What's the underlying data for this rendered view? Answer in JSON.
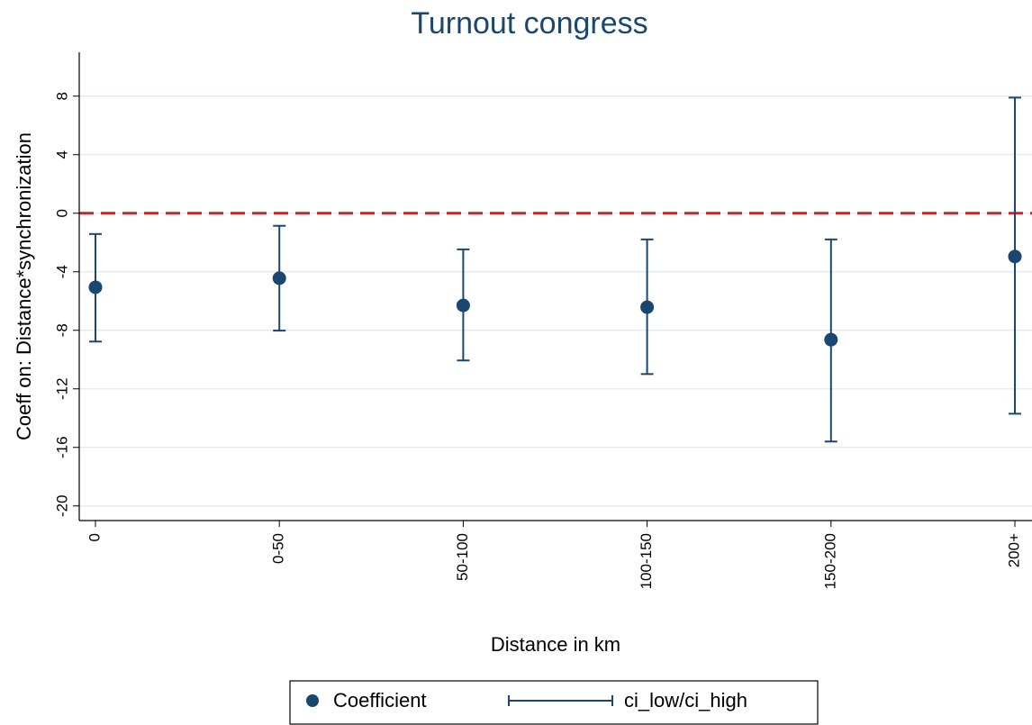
{
  "chart_data": {
    "type": "errorbar",
    "title": "Turnout congress",
    "xlabel": "Distance in km",
    "ylabel": "Coeff on: Distance*synchronization",
    "categories": [
      "0",
      "0-50",
      "50-100",
      "100-150",
      "150-200",
      "200+"
    ],
    "series": [
      {
        "name": "Coefficient",
        "color": "#1a476f",
        "values": [
          -5.06,
          -4.44,
          -6.3,
          -6.42,
          -8.64,
          -2.96
        ]
      },
      {
        "name": "ci_low/ci_high",
        "color": "#1a476f",
        "low": [
          -8.77,
          -8.02,
          -10.06,
          -10.99,
          -15.6,
          -13.7
        ],
        "high": [
          -1.42,
          -0.86,
          -2.47,
          -1.79,
          -1.79,
          7.9
        ]
      }
    ],
    "ylim": [
      -21,
      11
    ],
    "yticks": [
      -20,
      -16,
      -12,
      -8,
      -4,
      0,
      4,
      8
    ],
    "grid": true,
    "reference_line": {
      "y": 0,
      "color": "#e41a1c",
      "style": "dashed"
    },
    "legend": "bottom"
  }
}
